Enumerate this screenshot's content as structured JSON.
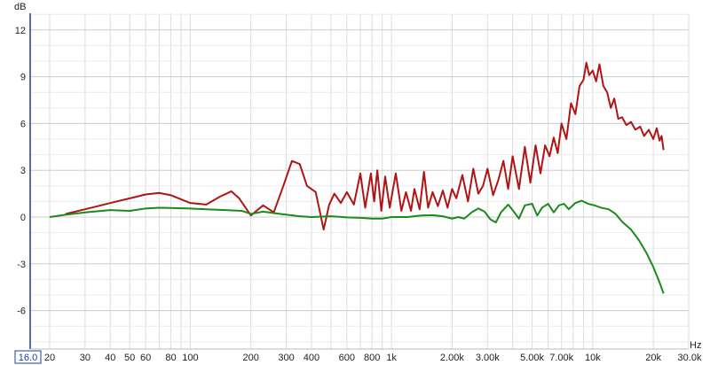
{
  "chart_data": {
    "type": "line",
    "xscale": "log",
    "xlim": [
      16,
      30000
    ],
    "ylim": [
      -8,
      13.5
    ],
    "ylabel": "dB",
    "xlabel": "Hz",
    "grid": true,
    "y_ticks": [
      12,
      9,
      6,
      3,
      0,
      -3,
      -6
    ],
    "y_tick_labels": [
      "12",
      "9",
      "6",
      "3",
      "0",
      "-3",
      "-6"
    ],
    "x_ticks": [
      16,
      20,
      30,
      40,
      50,
      60,
      80,
      100,
      200,
      300,
      400,
      600,
      800,
      1000,
      2000,
      3000,
      5000,
      7000,
      10000,
      20000,
      30000
    ],
    "x_tick_labels": [
      "16.0",
      "20",
      "30",
      "40",
      "50",
      "60",
      "80",
      "100",
      "200",
      "300",
      "400",
      "600",
      "800",
      "1k",
      "2.00k",
      "3.00k",
      "5.00k",
      "7.00k",
      "10k",
      "20k",
      "30.0k"
    ],
    "series": [
      {
        "color": "#b01515",
        "x": [
          24,
          30,
          40,
          50,
          60,
          70,
          80,
          100,
          120,
          140,
          160,
          175,
          200,
          230,
          260,
          290,
          320,
          350,
          380,
          420,
          460,
          490,
          520,
          560,
          600,
          650,
          700,
          740,
          790,
          820,
          850,
          890,
          930,
          980,
          1050,
          1120,
          1180,
          1250,
          1300,
          1380,
          1450,
          1520,
          1600,
          1700,
          1800,
          1900,
          2000,
          2100,
          2250,
          2400,
          2550,
          2700,
          2850,
          3000,
          3200,
          3400,
          3600,
          3800,
          4000,
          4300,
          4600,
          4900,
          5200,
          5500,
          5800,
          6100,
          6400,
          6700,
          7000,
          7400,
          7800,
          8200,
          8600,
          9000,
          9300,
          9600,
          10000,
          10400,
          10800,
          11300,
          11800,
          12300,
          12800,
          13400,
          14000,
          14700,
          15500,
          16300,
          17200,
          18000,
          19000,
          20000,
          20800,
          21500,
          22000,
          22500
        ],
        "y": [
          0.2,
          0.5,
          0.9,
          1.2,
          1.45,
          1.55,
          1.4,
          0.9,
          0.8,
          1.3,
          1.65,
          1.2,
          0.1,
          0.75,
          0.3,
          2.0,
          3.6,
          3.4,
          2.0,
          1.6,
          -0.8,
          0.8,
          1.5,
          0.9,
          1.6,
          0.8,
          2.8,
          0.6,
          2.8,
          1.0,
          3.0,
          0.4,
          2.6,
          0.6,
          2.8,
          0.4,
          1.6,
          0.4,
          1.8,
          0.5,
          2.9,
          0.6,
          1.6,
          0.7,
          1.7,
          0.6,
          1.8,
          1.2,
          2.7,
          1.0,
          3.1,
          1.5,
          2.0,
          3.1,
          1.4,
          2.4,
          3.6,
          1.8,
          3.9,
          1.8,
          4.5,
          2.2,
          4.6,
          2.8,
          4.6,
          3.9,
          5.1,
          4.1,
          6.0,
          5.0,
          7.3,
          6.6,
          8.4,
          8.8,
          9.9,
          9.1,
          9.4,
          8.7,
          9.8,
          8.4,
          8.0,
          7.0,
          7.6,
          6.3,
          6.4,
          5.9,
          6.1,
          5.6,
          5.8,
          5.2,
          5.6,
          5.0,
          5.7,
          4.9,
          5.2,
          4.3
        ]
      },
      {
        "color": "#1a8a1a",
        "x": [
          20,
          24,
          30,
          40,
          50,
          60,
          70,
          80,
          100,
          120,
          150,
          180,
          200,
          230,
          280,
          350,
          400,
          500,
          600,
          700,
          800,
          900,
          1000,
          1200,
          1400,
          1600,
          1800,
          2000,
          2150,
          2300,
          2500,
          2700,
          2900,
          3100,
          3300,
          3500,
          3800,
          4000,
          4300,
          4600,
          5000,
          5300,
          5600,
          6000,
          6400,
          6800,
          7200,
          7600,
          8200,
          8800,
          9500,
          10200,
          11000,
          12000,
          13000,
          14000,
          15500,
          17000,
          18500,
          20000,
          21500,
          22500
        ],
        "y": [
          0.0,
          0.15,
          0.3,
          0.45,
          0.4,
          0.55,
          0.6,
          0.58,
          0.55,
          0.5,
          0.45,
          0.4,
          0.2,
          0.35,
          0.2,
          0.05,
          0.0,
          0.05,
          -0.02,
          -0.05,
          -0.1,
          -0.1,
          0.0,
          0.0,
          0.1,
          0.12,
          0.05,
          -0.1,
          0.0,
          -0.1,
          0.3,
          0.55,
          0.35,
          -0.15,
          -0.35,
          0.3,
          0.8,
          0.45,
          -0.1,
          0.75,
          0.85,
          0.1,
          0.6,
          0.85,
          0.3,
          0.75,
          0.85,
          0.5,
          0.9,
          1.05,
          0.85,
          0.75,
          0.6,
          0.5,
          0.2,
          -0.3,
          -0.8,
          -1.5,
          -2.3,
          -3.2,
          -4.2,
          -4.9
        ]
      }
    ]
  }
}
